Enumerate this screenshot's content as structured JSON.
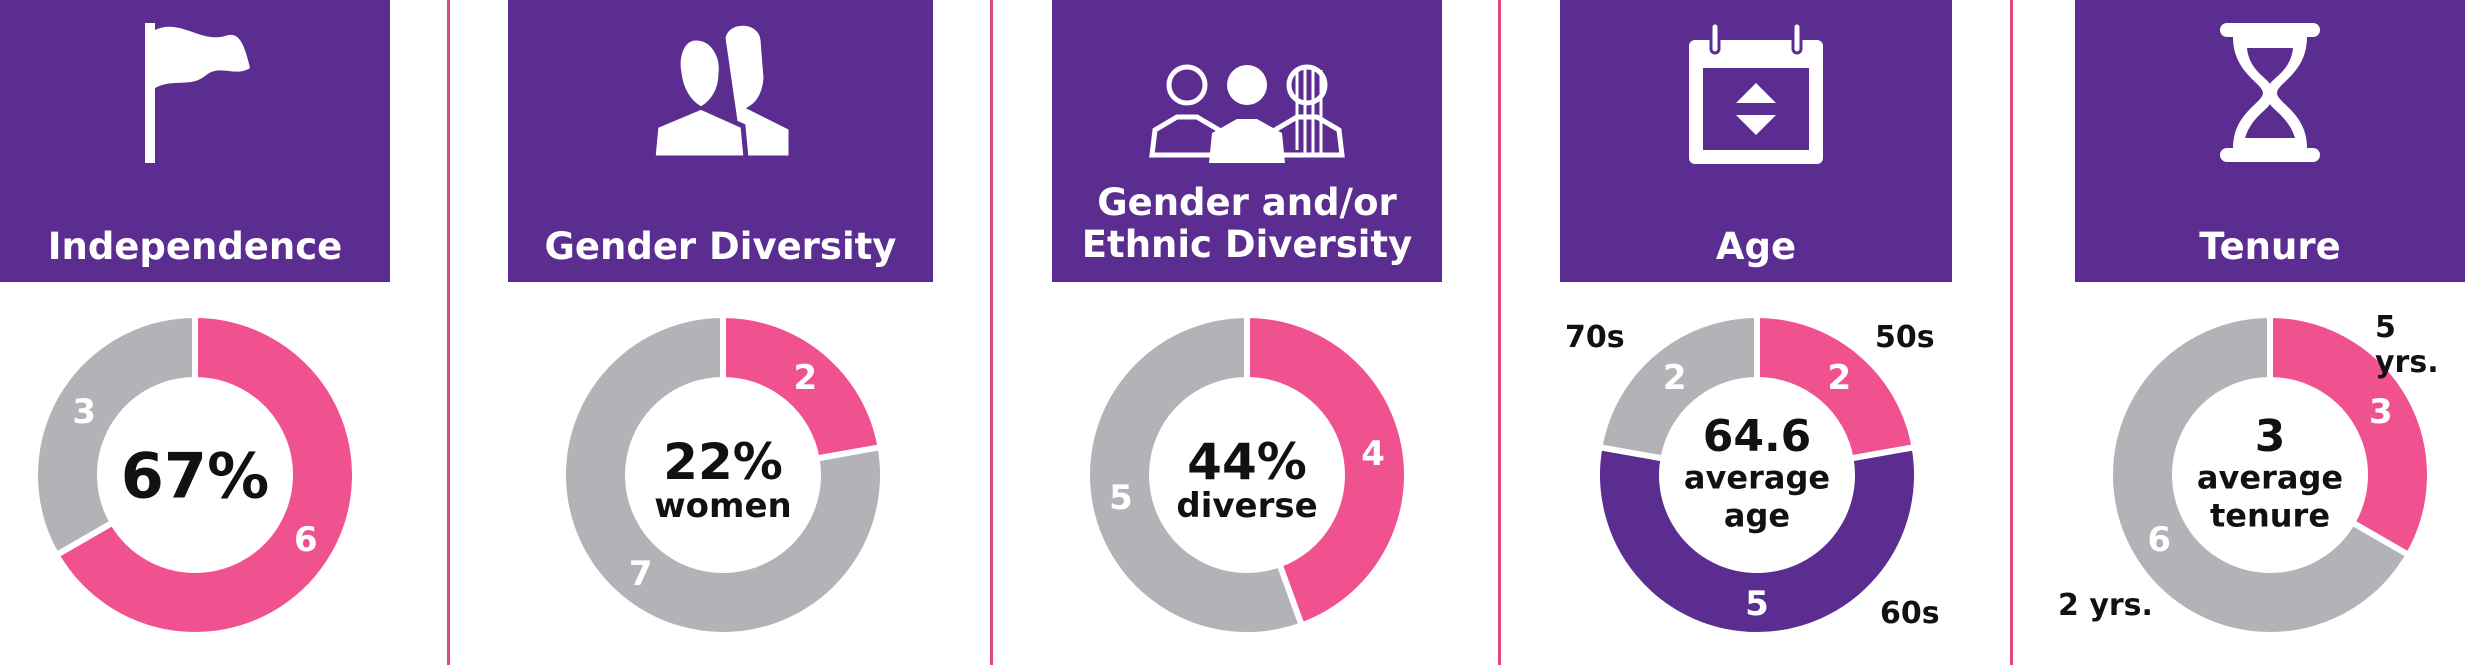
{
  "colors": {
    "purple": "#5b2d91",
    "pink": "#f0528f",
    "gray": "#b2b3b7",
    "divider": "#e0457b"
  },
  "panels": [
    {
      "title": "Independence",
      "icon": "flag-icon"
    },
    {
      "title": "Gender Diversity",
      "icon": "people-icon"
    },
    {
      "title_line1": "Gender and/or",
      "title_line2": "Ethnic Diversity",
      "icon": "diverse-people-icon"
    },
    {
      "title": "Age",
      "icon": "calendar-icon"
    },
    {
      "title": "Tenure",
      "icon": "hourglass-icon"
    }
  ],
  "chart_data": [
    {
      "type": "pie",
      "title": "Independence",
      "center_text": "67%",
      "segments": [
        {
          "value": 6,
          "color": "pink"
        },
        {
          "value": 3,
          "color": "gray"
        }
      ]
    },
    {
      "type": "pie",
      "title": "Gender Diversity",
      "center_text": [
        "22%",
        "women"
      ],
      "segments": [
        {
          "value": 2,
          "color": "pink"
        },
        {
          "value": 7,
          "color": "gray"
        }
      ]
    },
    {
      "type": "pie",
      "title": "Gender and/or Ethnic Diversity",
      "center_text": [
        "44%",
        "diverse"
      ],
      "segments": [
        {
          "value": 4,
          "color": "pink"
        },
        {
          "value": 5,
          "color": "gray"
        }
      ]
    },
    {
      "type": "pie",
      "title": "Age",
      "center_text": [
        "64.6",
        "average",
        "age"
      ],
      "segments": [
        {
          "label": "50s",
          "value": 2,
          "color": "pink"
        },
        {
          "label": "60s",
          "value": 5,
          "color": "purple"
        },
        {
          "label": "70s",
          "value": 2,
          "color": "gray"
        }
      ]
    },
    {
      "type": "pie",
      "title": "Tenure",
      "center_text": [
        "3",
        "average",
        "tenure"
      ],
      "segments": [
        {
          "label": "5 yrs.",
          "value": 3,
          "color": "pink"
        },
        {
          "label": "2 yrs.",
          "value": 6,
          "color": "gray"
        }
      ]
    }
  ]
}
